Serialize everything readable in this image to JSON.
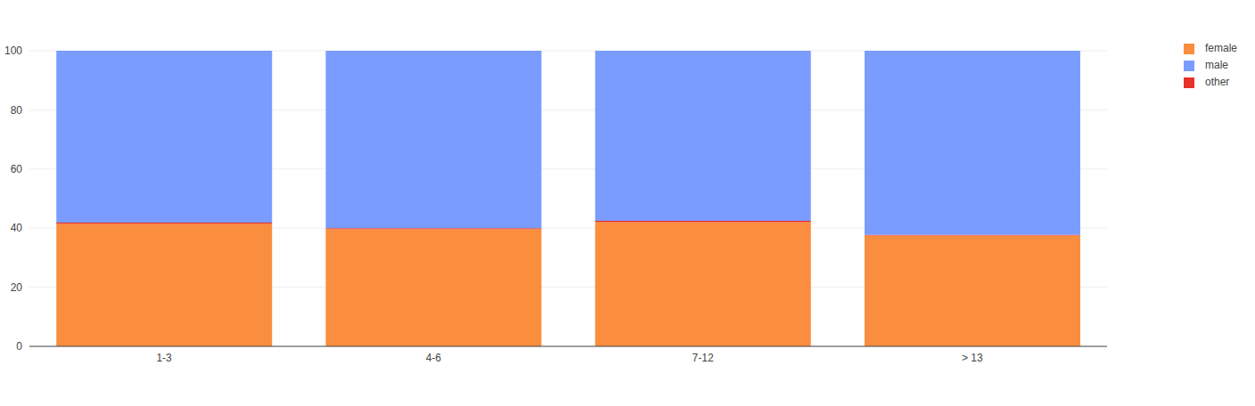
{
  "chart_data": {
    "type": "bar",
    "categories": [
      "1-3",
      "4-6",
      "7-12",
      "> 13"
    ],
    "series": [
      {
        "name": "female",
        "color": "#fa8d3e",
        "values": [
          41.5,
          39.7,
          42.0,
          37.5
        ]
      },
      {
        "name": "other",
        "color": "#e8312a",
        "values": [
          0.4,
          0.3,
          0.5,
          0.2
        ]
      },
      {
        "name": "male",
        "color": "#7a9cff",
        "values": [
          58.1,
          60.0,
          57.5,
          62.3
        ]
      }
    ],
    "ylim": [
      0,
      100
    ],
    "yticks": [
      0,
      20,
      40,
      60,
      80,
      100
    ],
    "grid": true,
    "stacked": true,
    "legend": "top-right"
  }
}
